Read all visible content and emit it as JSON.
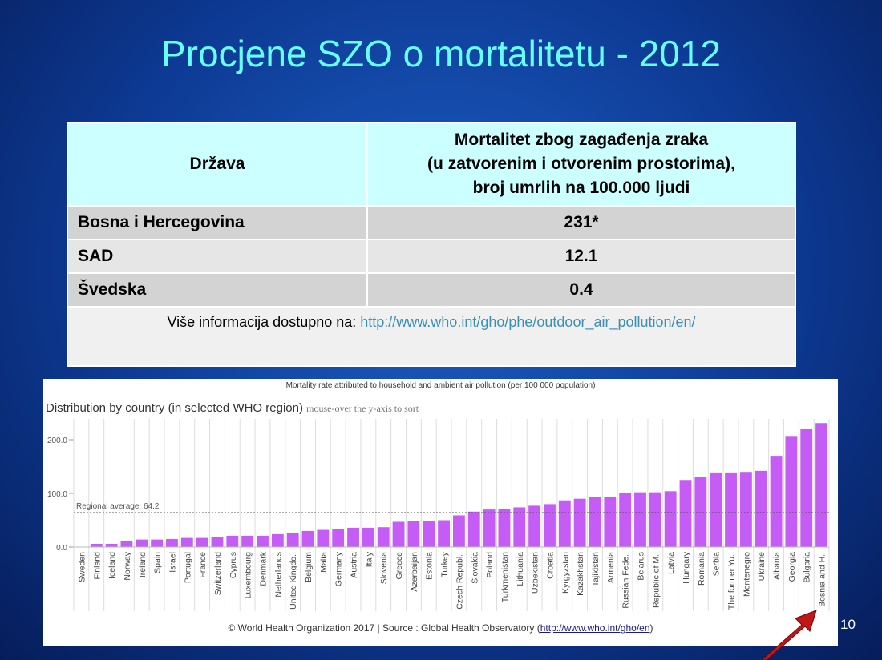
{
  "title": "Procjene SZO o mortalitetu - 2012",
  "table": {
    "headers": [
      "Država",
      "Mortalitet zbog zagađenja zraka",
      "(u zatvorenim i otvorenim prostorima),",
      "broj umrlih na 100.000 ljudi"
    ],
    "rows": [
      {
        "country": "Bosna i Hercegovina",
        "value": "231*"
      },
      {
        "country": "SAD",
        "value": "12.1"
      },
      {
        "country": "Švedska",
        "value": "0.4"
      }
    ],
    "footer_text": "Više informacija dostupno na: ",
    "footer_link": "http://www.who.int/gho/phe/outdoor_air_pollution/en/"
  },
  "chart_header": "Mortality rate attributed to household and ambient air pollution (per 100 000 population)",
  "chart_subtitle": "Distribution by country (in selected WHO region)",
  "chart_hint": "mouse-over the y-axis to sort",
  "credit_text": "© World Health Organization 2017 | Source : Global Health Observatory (",
  "credit_link": "http://www.who.int/gho/en",
  "credit_end": ")",
  "page_number": "10",
  "chart_data": {
    "type": "bar",
    "ylim": [
      0,
      240
    ],
    "yticks": [
      "0.0",
      "100.0",
      "200.0"
    ],
    "average_label": "Regional average: 64.2",
    "average": 64.2,
    "bar_color": "#c45cf5",
    "categories": [
      "Sweden",
      "Finland",
      "Iceland",
      "Norway",
      "Ireland",
      "Spain",
      "Israel",
      "Portugal",
      "France",
      "Switzerland",
      "Cyprus",
      "Luxembourg",
      "Denmark",
      "Netherlands",
      "United Kingdo..",
      "Belgium",
      "Malta",
      "Germany",
      "Austria",
      "Italy",
      "Slovenia",
      "Greece",
      "Azerbaijan",
      "Estonia",
      "Turkey",
      "Czech Republ..",
      "Slovakia",
      "Poland",
      "Turkmenistan",
      "Lithuania",
      "Uzbekistan",
      "Croatia",
      "Kyrgyzstan",
      "Kazakhstan",
      "Tajikistan",
      "Armenia",
      "Russian Fede..",
      "Belarus",
      "Republic of M..",
      "Latvia",
      "Hungary",
      "Romania",
      "Serbia",
      "The former Yu..",
      "Montenegro",
      "Ukraine",
      "Albania",
      "Georgia",
      "Bulgaria",
      "Bosnia and H.."
    ],
    "values": [
      0.4,
      6,
      6,
      12,
      14,
      14,
      15,
      17,
      17,
      18,
      21,
      21,
      21,
      24,
      26,
      30,
      32,
      34,
      36,
      36,
      37,
      47,
      48,
      48,
      50,
      59,
      66,
      70,
      71,
      74,
      77,
      80,
      87,
      90,
      93,
      93,
      101,
      102,
      102,
      104,
      125,
      131,
      139,
      139,
      140,
      142,
      170,
      207,
      220,
      231
    ]
  }
}
